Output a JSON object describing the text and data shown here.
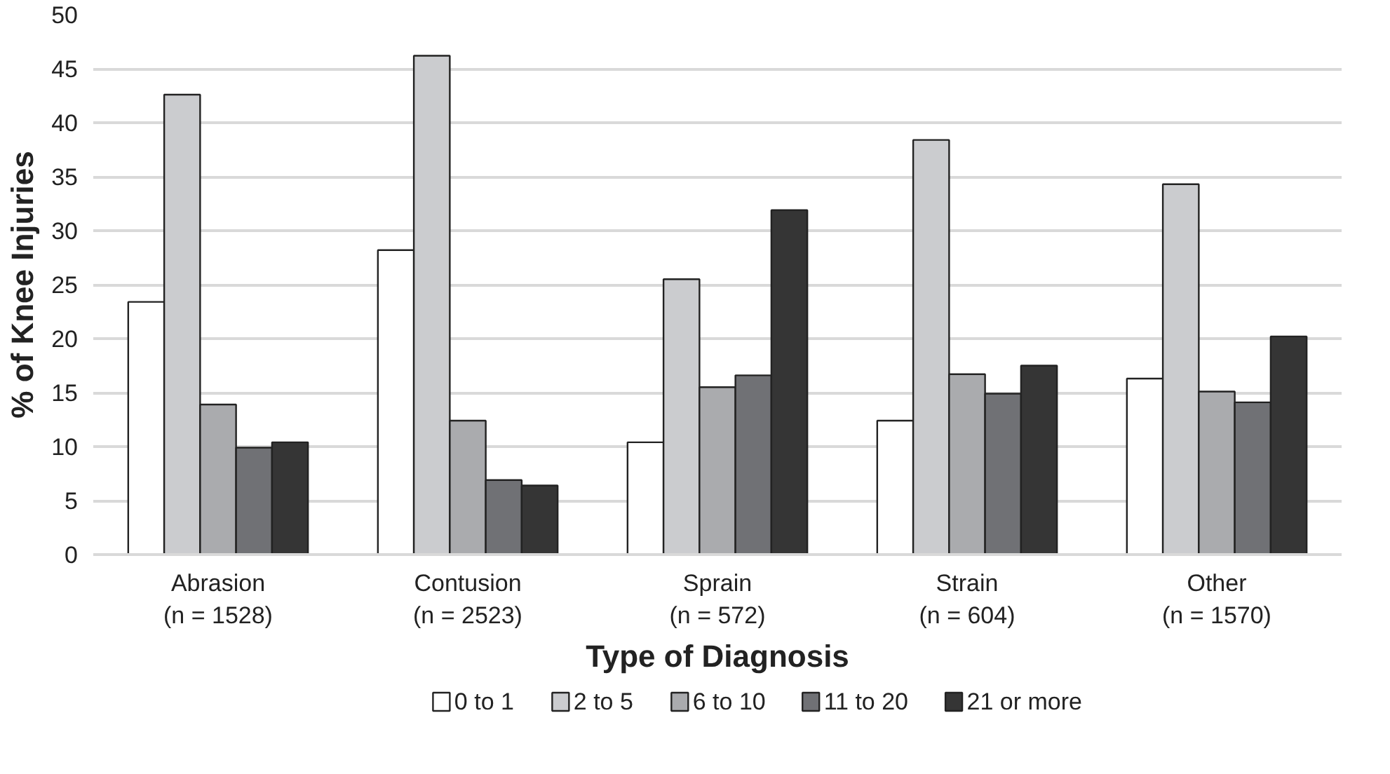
{
  "chart_data": {
    "type": "bar",
    "xlabel": "Type of Diagnosis",
    "ylabel": "% of Knee Injuries",
    "categories": [
      "Abrasion\n(n = 1528)",
      "Contusion\n(n = 2523)",
      "Sprain\n(n = 572)",
      "Strain\n(n = 604)",
      "Other\n(n = 1570)"
    ],
    "series": [
      {
        "name": "0 to 1",
        "color": "#ffffff",
        "values": [
          23.4,
          28.2,
          10.4,
          12.4,
          16.3
        ]
      },
      {
        "name": "2 to 5",
        "color": "#cbcccf",
        "values": [
          42.6,
          46.2,
          25.5,
          38.4,
          34.3
        ]
      },
      {
        "name": "6 to 10",
        "color": "#aaabae",
        "values": [
          13.9,
          12.4,
          15.5,
          16.7,
          15.1
        ]
      },
      {
        "name": "11 to 20",
        "color": "#707175",
        "values": [
          9.9,
          6.9,
          16.6,
          14.9,
          14.1
        ]
      },
      {
        "name": "21 or more",
        "color": "#353535",
        "values": [
          10.4,
          6.4,
          31.9,
          17.5,
          20.2
        ]
      }
    ],
    "ylim": [
      0,
      50
    ],
    "yticks": [
      0,
      5,
      10,
      15,
      20,
      25,
      30,
      35,
      40,
      45,
      50
    ],
    "grid": "y",
    "legend": "bottom"
  }
}
